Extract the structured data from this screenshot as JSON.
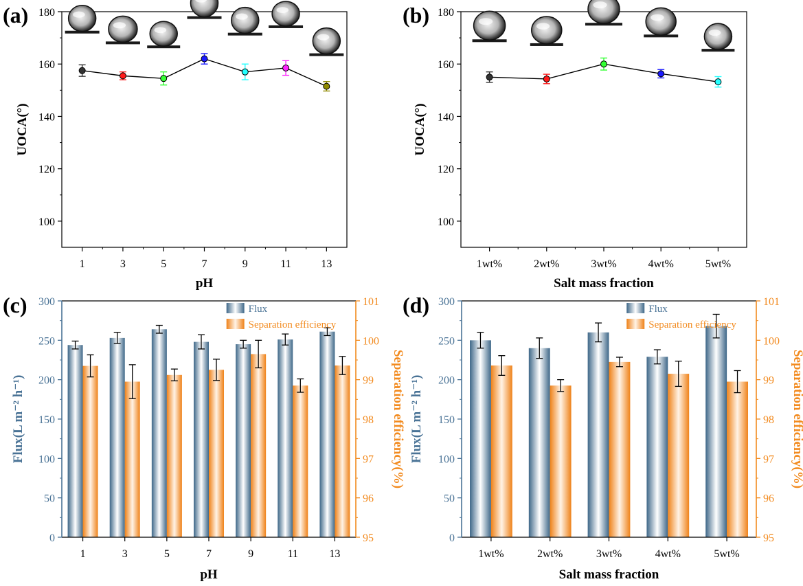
{
  "figure": {
    "colors": {
      "flux": "#4a7396",
      "flux_light": "#ffffff",
      "flux_dark": "#3e6788",
      "separation": "#f28a1e",
      "separation_light": "#ffffff",
      "separation_dark": "#ef8219",
      "axis": "#000000",
      "line": "#000000"
    }
  },
  "chart_data": [
    {
      "id": "a",
      "panel_label": "(a)",
      "type": "scatter",
      "xlabel": "pH",
      "ylabel": "UOCA(°)",
      "categories": [
        "1",
        "3",
        "5",
        "7",
        "9",
        "11",
        "13"
      ],
      "ylim": [
        90,
        180
      ],
      "yticks": [
        "100",
        "120",
        "140",
        "160",
        "180"
      ],
      "series": [
        {
          "name": "UOCA",
          "values": [
            157.5,
            155.5,
            154.5,
            162,
            157,
            158.5,
            151.5
          ],
          "errors": [
            2.2,
            1.5,
            2.5,
            2.0,
            3.0,
            2.8,
            1.8
          ],
          "point_colors": [
            "#333333",
            "#ff1a1a",
            "#33ff33",
            "#1a1aff",
            "#22ffff",
            "#ff22ff",
            "#8f8a00"
          ]
        }
      ],
      "annotations": [
        "droplet-images"
      ]
    },
    {
      "id": "b",
      "panel_label": "(b)",
      "type": "scatter",
      "xlabel": "Salt mass fraction",
      "ylabel": "UOCA(°)",
      "categories": [
        "1wt%",
        "2wt%",
        "3wt%",
        "4wt%",
        "5wt%"
      ],
      "ylim": [
        90,
        180
      ],
      "yticks": [
        "100",
        "120",
        "140",
        "160",
        "180"
      ],
      "series": [
        {
          "name": "UOCA",
          "values": [
            155,
            154.3,
            160,
            156.3,
            153.2
          ],
          "errors": [
            2.0,
            1.8,
            2.3,
            1.6,
            2.0
          ],
          "point_colors": [
            "#333333",
            "#ff1a1a",
            "#33ff33",
            "#1a1aff",
            "#22ffff"
          ]
        }
      ],
      "annotations": [
        "droplet-images"
      ]
    },
    {
      "id": "c",
      "panel_label": "(c)",
      "type": "bar",
      "xlabel": "pH",
      "ylabel": "Flux(L m⁻² h⁻¹)",
      "y2label": "Separation efficiency(%)",
      "categories": [
        "1",
        "3",
        "5",
        "7",
        "9",
        "11",
        "13"
      ],
      "ylim": [
        0,
        300
      ],
      "y2lim": [
        95,
        101
      ],
      "yticks": [
        "0",
        "50",
        "100",
        "150",
        "200",
        "250",
        "300"
      ],
      "y2ticks": [
        "95",
        "96",
        "97",
        "98",
        "99",
        "100",
        "101"
      ],
      "series": [
        {
          "name": "Flux",
          "axis": "left",
          "values": [
            244,
            253,
            264,
            248,
            245,
            251,
            261
          ],
          "errors": [
            5,
            7,
            5,
            9,
            5,
            7,
            5
          ]
        },
        {
          "name": "Separation efficiency",
          "axis": "right",
          "values": [
            99.35,
            98.95,
            99.12,
            99.25,
            99.65,
            98.85,
            99.36
          ],
          "errors": [
            0.28,
            0.43,
            0.15,
            0.27,
            0.35,
            0.17,
            0.23
          ]
        }
      ],
      "legend": [
        "Flux",
        "Separation efficiency"
      ]
    },
    {
      "id": "d",
      "panel_label": "(d)",
      "type": "bar",
      "xlabel": "Salt mass fraction",
      "ylabel": "Flux(L m⁻² h⁻¹)",
      "y2label": "Separation efficiency(%)",
      "categories": [
        "1wt%",
        "2wt%",
        "3wt%",
        "4wt%",
        "5wt%"
      ],
      "ylim": [
        0,
        300
      ],
      "y2lim": [
        95,
        101
      ],
      "yticks": [
        "0",
        "50",
        "100",
        "150",
        "200",
        "250",
        "300"
      ],
      "y2ticks": [
        "95",
        "96",
        "97",
        "98",
        "99",
        "100",
        "101"
      ],
      "series": [
        {
          "name": "Flux",
          "axis": "left",
          "values": [
            250,
            240,
            260,
            229,
            268
          ],
          "errors": [
            10,
            13,
            12,
            9,
            15
          ]
        },
        {
          "name": "Separation efficiency",
          "axis": "right",
          "values": [
            99.36,
            98.85,
            99.45,
            99.15,
            98.95
          ],
          "errors": [
            0.25,
            0.15,
            0.12,
            0.32,
            0.28
          ]
        }
      ],
      "legend": [
        "Flux",
        "Separation efficiency"
      ]
    }
  ]
}
